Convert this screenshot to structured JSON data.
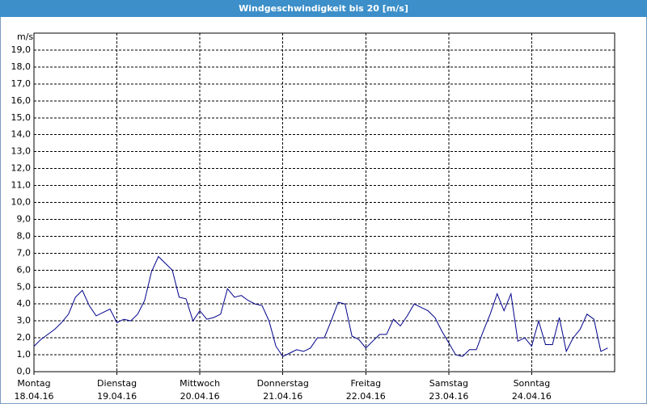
{
  "chart_data": {
    "type": "line",
    "title": "Windgeschwindigkeit bis 20 [m/s]",
    "y_unit": "m/s",
    "x": [
      0,
      2,
      4,
      6,
      8,
      10,
      12,
      14,
      16,
      18,
      20,
      22,
      24,
      26,
      28,
      30,
      32,
      34,
      36,
      38,
      40,
      42,
      44,
      46,
      48,
      50,
      52,
      54,
      56,
      58,
      60,
      62,
      64,
      66,
      68,
      70,
      72,
      74,
      76,
      78,
      80,
      82,
      84,
      86,
      88,
      90,
      92,
      94,
      96,
      98,
      100,
      102,
      104,
      106,
      108,
      110,
      112,
      114,
      116,
      118,
      120,
      122,
      124,
      126,
      128,
      130,
      132,
      134,
      136,
      138,
      140,
      142,
      144,
      146,
      148,
      150,
      152,
      154,
      156,
      158,
      160,
      162,
      164,
      166
    ],
    "series": [
      {
        "color": "#00008b",
        "values": [
          1.5,
          1.9,
          2.2,
          2.5,
          2.9,
          3.4,
          4.4,
          4.8,
          3.9,
          3.3,
          3.5,
          3.7,
          2.9,
          3.1,
          3.0,
          3.4,
          4.2,
          5.9,
          6.8,
          6.4,
          6.0,
          4.4,
          4.3,
          3.0,
          3.6,
          3.1,
          3.2,
          3.4,
          4.9,
          4.4,
          4.5,
          4.2,
          4.0,
          3.9,
          3.0,
          1.5,
          0.9,
          1.1,
          1.3,
          1.2,
          1.4,
          2.0,
          2.0,
          3.0,
          4.1,
          4.0,
          2.1,
          1.9,
          1.4,
          1.8,
          2.2,
          2.2,
          3.1,
          2.7,
          3.3,
          4.0,
          3.8,
          3.6,
          3.2,
          2.4,
          1.7,
          1.0,
          0.9,
          1.3,
          1.3,
          2.4,
          3.4,
          4.6,
          3.6,
          4.6,
          1.8,
          2.0,
          1.5,
          3.0,
          1.6,
          1.6,
          3.2,
          1.2,
          2.0,
          2.5,
          3.4,
          3.1,
          1.2,
          1.4
        ]
      }
    ],
    "xlim": [
      0,
      168
    ],
    "xticks": [
      {
        "value": 0,
        "label": "Montag",
        "sublabel": "18.04.16"
      },
      {
        "value": 24,
        "label": "Dienstag",
        "sublabel": "19.04.16"
      },
      {
        "value": 48,
        "label": "Mittwoch",
        "sublabel": "20.04.16"
      },
      {
        "value": 72,
        "label": "Donnerstag",
        "sublabel": "21.04.16"
      },
      {
        "value": 96,
        "label": "Freitag",
        "sublabel": "22.04.16"
      },
      {
        "value": 120,
        "label": "Samstag",
        "sublabel": "23.04.16"
      },
      {
        "value": 144,
        "label": "Sonntag",
        "sublabel": "24.04.16"
      }
    ],
    "ylim": [
      0,
      20
    ],
    "yticks": [
      {
        "value": 0,
        "label": "0,0"
      },
      {
        "value": 1,
        "label": "1,0"
      },
      {
        "value": 2,
        "label": "2,0"
      },
      {
        "value": 3,
        "label": "3,0"
      },
      {
        "value": 4,
        "label": "4,0"
      },
      {
        "value": 5,
        "label": "5,0"
      },
      {
        "value": 6,
        "label": "6,0"
      },
      {
        "value": 7,
        "label": "7,0"
      },
      {
        "value": 8,
        "label": "8,0"
      },
      {
        "value": 9,
        "label": "9,0"
      },
      {
        "value": 10,
        "label": "10,0"
      },
      {
        "value": 11,
        "label": "11,0"
      },
      {
        "value": 12,
        "label": "12,0"
      },
      {
        "value": 13,
        "label": "13,0"
      },
      {
        "value": 14,
        "label": "14,0"
      },
      {
        "value": 15,
        "label": "15,0"
      },
      {
        "value": 16,
        "label": "16,0"
      },
      {
        "value": 17,
        "label": "17,0"
      },
      {
        "value": 18,
        "label": "18,0"
      },
      {
        "value": 19,
        "label": "19,0"
      }
    ],
    "grid": true
  }
}
